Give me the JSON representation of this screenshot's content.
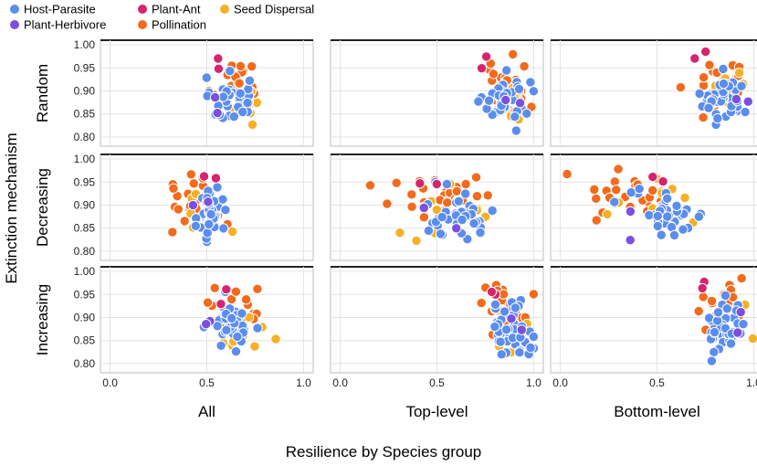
{
  "chart_data": {
    "type": "scatter",
    "title": "",
    "xlabel": "Resilience by Species group",
    "ylabel": "Extinction mechanism",
    "xlim": [
      -0.05,
      1.05
    ],
    "ylim": [
      0.78,
      1.01
    ],
    "x_ticks": [
      "0.0",
      "0.5",
      "1.0"
    ],
    "x_tick_values": [
      0,
      0.5,
      1
    ],
    "y_ticks": [
      "1.00",
      "0.95",
      "0.90",
      "0.85",
      "0.80"
    ],
    "y_tick_values": [
      1.0,
      0.95,
      0.9,
      0.85,
      0.8
    ],
    "legend": [
      {
        "name": "Host-Parasite",
        "color": "#5b8def"
      },
      {
        "name": "Plant-Ant",
        "color": "#d6246e"
      },
      {
        "name": "Seed Dispersal",
        "color": "#f4b125"
      },
      {
        "name": "Plant-Herbivore",
        "color": "#7b4fe0"
      },
      {
        "name": "Pollination",
        "color": "#f26a1b"
      }
    ],
    "columns": [
      "All",
      "Top-level",
      "Bottom-level"
    ],
    "rows": [
      "Random",
      "Decreasing",
      "Increasing"
    ],
    "panels": [
      {
        "row": "Random",
        "col": "All",
        "clusters": [
          {
            "group": "Pollination",
            "n": 26,
            "cx": 0.66,
            "sx": 0.07,
            "cy": 0.91,
            "sy": 0.03
          },
          {
            "group": "Seed Dispersal",
            "n": 9,
            "cx": 0.68,
            "sx": 0.06,
            "cy": 0.88,
            "sy": 0.03
          },
          {
            "group": "Host-Parasite",
            "n": 40,
            "cx": 0.62,
            "sx": 0.05,
            "cy": 0.88,
            "sy": 0.025
          },
          {
            "group": "Plant-Herbivore",
            "n": 2,
            "cx": 0.52,
            "sx": 0.03,
            "cy": 0.88,
            "sy": 0.02
          },
          {
            "group": "Plant-Ant",
            "n": 2,
            "cx": 0.56,
            "sx": 0.04,
            "cy": 0.96,
            "sy": 0.015
          }
        ]
      },
      {
        "row": "Random",
        "col": "Top-level",
        "clusters": [
          {
            "group": "Pollination",
            "n": 26,
            "cx": 0.86,
            "sx": 0.07,
            "cy": 0.92,
            "sy": 0.03
          },
          {
            "group": "Seed Dispersal",
            "n": 9,
            "cx": 0.88,
            "sx": 0.05,
            "cy": 0.88,
            "sy": 0.03
          },
          {
            "group": "Host-Parasite",
            "n": 40,
            "cx": 0.86,
            "sx": 0.06,
            "cy": 0.88,
            "sy": 0.025
          },
          {
            "group": "Plant-Herbivore",
            "n": 2,
            "cx": 0.9,
            "sx": 0.03,
            "cy": 0.87,
            "sy": 0.02
          },
          {
            "group": "Plant-Ant",
            "n": 2,
            "cx": 0.74,
            "sx": 0.08,
            "cy": 0.96,
            "sy": 0.015
          }
        ]
      },
      {
        "row": "Random",
        "col": "Bottom-level",
        "clusters": [
          {
            "group": "Pollination",
            "n": 26,
            "cx": 0.82,
            "sx": 0.07,
            "cy": 0.92,
            "sy": 0.03
          },
          {
            "group": "Seed Dispersal",
            "n": 9,
            "cx": 0.86,
            "sx": 0.05,
            "cy": 0.9,
            "sy": 0.03
          },
          {
            "group": "Host-Parasite",
            "n": 40,
            "cx": 0.85,
            "sx": 0.06,
            "cy": 0.88,
            "sy": 0.025
          },
          {
            "group": "Plant-Herbivore",
            "n": 2,
            "cx": 0.96,
            "sx": 0.02,
            "cy": 0.88,
            "sy": 0.02
          },
          {
            "group": "Plant-Ant",
            "n": 2,
            "cx": 0.74,
            "sx": 0.02,
            "cy": 0.97,
            "sy": 0.01
          }
        ]
      },
      {
        "row": "Decreasing",
        "col": "All",
        "clusters": [
          {
            "group": "Pollination",
            "n": 26,
            "cx": 0.44,
            "sx": 0.08,
            "cy": 0.91,
            "sy": 0.03
          },
          {
            "group": "Seed Dispersal",
            "n": 9,
            "cx": 0.5,
            "sx": 0.08,
            "cy": 0.89,
            "sy": 0.03
          },
          {
            "group": "Host-Parasite",
            "n": 40,
            "cx": 0.52,
            "sx": 0.03,
            "cy": 0.88,
            "sy": 0.03
          },
          {
            "group": "Plant-Herbivore",
            "n": 2,
            "cx": 0.45,
            "sx": 0.05,
            "cy": 0.91,
            "sy": 0.02
          },
          {
            "group": "Plant-Ant",
            "n": 2,
            "cx": 0.48,
            "sx": 0.05,
            "cy": 0.96,
            "sy": 0.015
          }
        ]
      },
      {
        "row": "Decreasing",
        "col": "Top-level",
        "clusters": [
          {
            "group": "Pollination",
            "n": 26,
            "cx": 0.52,
            "sx": 0.15,
            "cy": 0.92,
            "sy": 0.03
          },
          {
            "group": "Seed Dispersal",
            "n": 9,
            "cx": 0.55,
            "sx": 0.15,
            "cy": 0.88,
            "sy": 0.035
          },
          {
            "group": "Host-Parasite",
            "n": 40,
            "cx": 0.6,
            "sx": 0.1,
            "cy": 0.88,
            "sy": 0.025
          },
          {
            "group": "Plant-Herbivore",
            "n": 2,
            "cx": 0.55,
            "sx": 0.1,
            "cy": 0.88,
            "sy": 0.03
          },
          {
            "group": "Plant-Ant",
            "n": 2,
            "cx": 0.45,
            "sx": 0.05,
            "cy": 0.96,
            "sy": 0.015
          }
        ]
      },
      {
        "row": "Decreasing",
        "col": "Bottom-level",
        "clusters": [
          {
            "group": "Pollination",
            "n": 26,
            "cx": 0.42,
            "sx": 0.15,
            "cy": 0.92,
            "sy": 0.03
          },
          {
            "group": "Seed Dispersal",
            "n": 9,
            "cx": 0.5,
            "sx": 0.15,
            "cy": 0.88,
            "sy": 0.035
          },
          {
            "group": "Host-Parasite",
            "n": 40,
            "cx": 0.55,
            "sx": 0.1,
            "cy": 0.88,
            "sy": 0.025
          },
          {
            "group": "Plant-Herbivore",
            "n": 2,
            "cx": 0.35,
            "sx": 0.1,
            "cy": 0.88,
            "sy": 0.03
          },
          {
            "group": "Plant-Ant",
            "n": 2,
            "cx": 0.5,
            "sx": 0.03,
            "cy": 0.97,
            "sy": 0.015
          }
        ]
      },
      {
        "row": "Increasing",
        "col": "All",
        "clusters": [
          {
            "group": "Pollination",
            "n": 26,
            "cx": 0.67,
            "sx": 0.07,
            "cy": 0.91,
            "sy": 0.03
          },
          {
            "group": "Seed Dispersal",
            "n": 9,
            "cx": 0.68,
            "sx": 0.06,
            "cy": 0.88,
            "sy": 0.03
          },
          {
            "group": "Host-Parasite",
            "n": 40,
            "cx": 0.63,
            "sx": 0.05,
            "cy": 0.88,
            "sy": 0.025
          },
          {
            "group": "Plant-Herbivore",
            "n": 2,
            "cx": 0.52,
            "sx": 0.03,
            "cy": 0.88,
            "sy": 0.02
          },
          {
            "group": "Plant-Ant",
            "n": 2,
            "cx": 0.58,
            "sx": 0.03,
            "cy": 0.96,
            "sy": 0.015
          }
        ]
      },
      {
        "row": "Increasing",
        "col": "Top-level",
        "clusters": [
          {
            "group": "Pollination",
            "n": 26,
            "cx": 0.86,
            "sx": 0.07,
            "cy": 0.92,
            "sy": 0.03
          },
          {
            "group": "Seed Dispersal",
            "n": 9,
            "cx": 0.88,
            "sx": 0.05,
            "cy": 0.88,
            "sy": 0.035
          },
          {
            "group": "Host-Parasite",
            "n": 40,
            "cx": 0.88,
            "sx": 0.06,
            "cy": 0.88,
            "sy": 0.03
          },
          {
            "group": "Plant-Herbivore",
            "n": 2,
            "cx": 0.9,
            "sx": 0.03,
            "cy": 0.88,
            "sy": 0.02
          },
          {
            "group": "Plant-Ant",
            "n": 2,
            "cx": 0.8,
            "sx": 0.03,
            "cy": 0.94,
            "sy": 0.01
          }
        ]
      },
      {
        "row": "Increasing",
        "col": "Bottom-level",
        "clusters": [
          {
            "group": "Pollination",
            "n": 26,
            "cx": 0.84,
            "sx": 0.07,
            "cy": 0.91,
            "sy": 0.03
          },
          {
            "group": "Seed Dispersal",
            "n": 9,
            "cx": 0.88,
            "sx": 0.05,
            "cy": 0.89,
            "sy": 0.03
          },
          {
            "group": "Host-Parasite",
            "n": 40,
            "cx": 0.86,
            "sx": 0.05,
            "cy": 0.88,
            "sy": 0.03
          },
          {
            "group": "Plant-Herbivore",
            "n": 2,
            "cx": 0.95,
            "sx": 0.02,
            "cy": 0.88,
            "sy": 0.02
          },
          {
            "group": "Plant-Ant",
            "n": 2,
            "cx": 0.7,
            "sx": 0.02,
            "cy": 0.97,
            "sy": 0.01
          }
        ]
      }
    ]
  }
}
